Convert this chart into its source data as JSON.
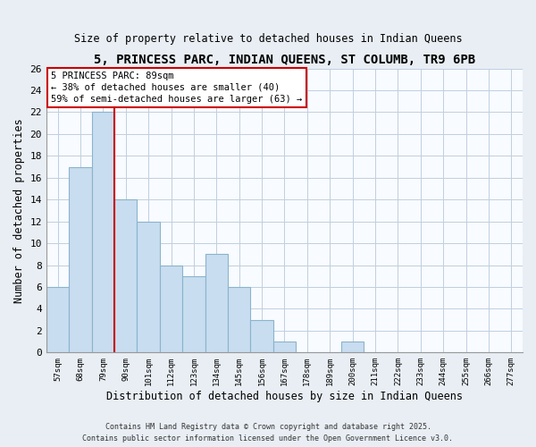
{
  "title": "5, PRINCESS PARC, INDIAN QUEENS, ST COLUMB, TR9 6PB",
  "subtitle": "Size of property relative to detached houses in Indian Queens",
  "xlabel": "Distribution of detached houses by size in Indian Queens",
  "ylabel": "Number of detached properties",
  "bar_labels": [
    "57sqm",
    "68sqm",
    "79sqm",
    "90sqm",
    "101sqm",
    "112sqm",
    "123sqm",
    "134sqm",
    "145sqm",
    "156sqm",
    "167sqm",
    "178sqm",
    "189sqm",
    "200sqm",
    "211sqm",
    "222sqm",
    "233sqm",
    "244sqm",
    "255sqm",
    "266sqm",
    "277sqm"
  ],
  "bar_values": [
    6,
    17,
    22,
    14,
    12,
    8,
    7,
    9,
    6,
    3,
    1,
    0,
    0,
    1,
    0,
    0,
    0,
    0,
    0,
    0,
    0
  ],
  "bar_color": "#c8ddef",
  "bar_edge_color": "#8ab4cc",
  "vline_color": "#cc0000",
  "annotation_title": "5 PRINCESS PARC: 89sqm",
  "annotation_line1": "← 38% of detached houses are smaller (40)",
  "annotation_line2": "59% of semi-detached houses are larger (63) →",
  "annotation_box_color": "#ffffff",
  "annotation_box_edge": "#cc0000",
  "ylim": [
    0,
    26
  ],
  "yticks": [
    0,
    2,
    4,
    6,
    8,
    10,
    12,
    14,
    16,
    18,
    20,
    22,
    24,
    26
  ],
  "footer_line1": "Contains HM Land Registry data © Crown copyright and database right 2025.",
  "footer_line2": "Contains public sector information licensed under the Open Government Licence v3.0.",
  "bg_color": "#e8eef4",
  "plot_bg_color": "#f8fbff",
  "grid_color": "#c0cfe0"
}
